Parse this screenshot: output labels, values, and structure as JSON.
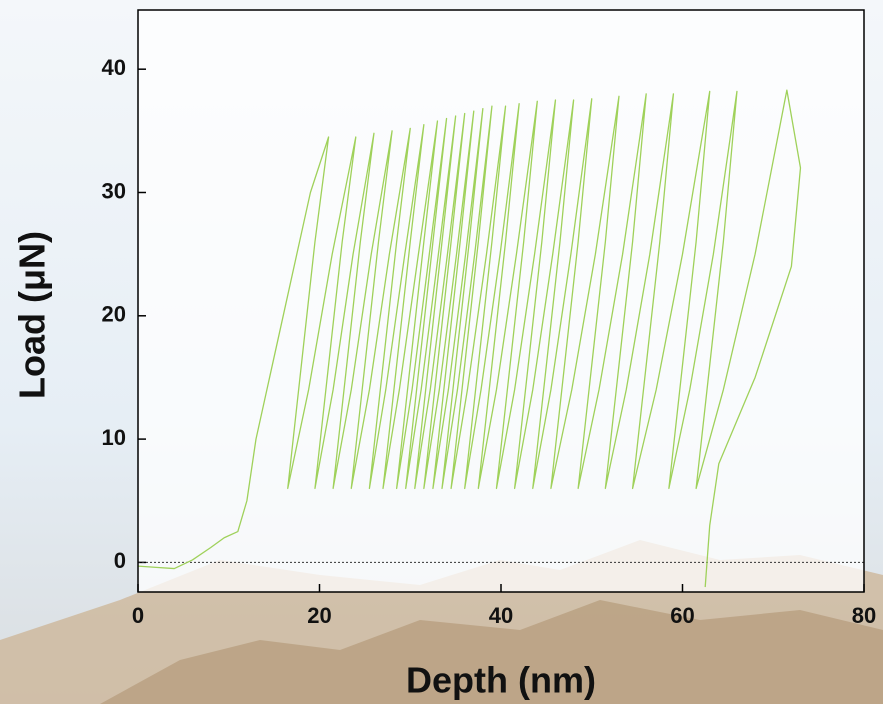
{
  "chart_data": {
    "type": "line",
    "xlabel": "Depth (nm)",
    "ylabel": "Load (μN)",
    "x": [
      0,
      2,
      4,
      6,
      8,
      9.5,
      11,
      12,
      13,
      14.5,
      16,
      17.5,
      19,
      21,
      19.5,
      18,
      16.5,
      18.8,
      21.4,
      24,
      22.5,
      21,
      19.5,
      21.5,
      23.7,
      26,
      24.5,
      23,
      21.5,
      23.5,
      25.7,
      28,
      26.5,
      25,
      23.5,
      25.5,
      27.7,
      30,
      28.5,
      27,
      25.5,
      27.3,
      29.4,
      31.5,
      30,
      28.5,
      27,
      28.8,
      30.9,
      33,
      31.5,
      30,
      28.5,
      30.2,
      32.1,
      34,
      32.5,
      31,
      29.5,
      31.2,
      33.1,
      35,
      33.5,
      32,
      30.5,
      32.2,
      34.1,
      36,
      34.5,
      33,
      31.5,
      33.2,
      35.1,
      37,
      35.5,
      34,
      32.5,
      34.2,
      36.1,
      38,
      36.5,
      35,
      33.5,
      35.2,
      37.1,
      39,
      37.5,
      36,
      34.5,
      36.3,
      38.4,
      40.5,
      39,
      37.5,
      36,
      37.8,
      39.9,
      42,
      40.5,
      39,
      37.5,
      39.5,
      41.7,
      44,
      42.5,
      41,
      39.5,
      41.5,
      43.7,
      46,
      44.5,
      43,
      41.5,
      43.5,
      45.7,
      48,
      46.5,
      45,
      43.5,
      45.5,
      47.7,
      50,
      48.5,
      47,
      45.5,
      47.8,
      50.4,
      53,
      51.5,
      50,
      48.5,
      50.8,
      53.4,
      56,
      54.5,
      53,
      51.5,
      53.8,
      56.4,
      59,
      57.5,
      56,
      54.5,
      57.1,
      60,
      63,
      61.5,
      60,
      58.5,
      60.8,
      63.4,
      66,
      64.5,
      63,
      61.5,
      64.5,
      68,
      71.5,
      73,
      72,
      68,
      64,
      63,
      62.5
    ],
    "values": [
      -0.3,
      -0.4,
      -0.5,
      0.2,
      1.2,
      2,
      2.5,
      5,
      10,
      15,
      20,
      25,
      30,
      34.5,
      26,
      16,
      6,
      14,
      25,
      34.5,
      26,
      16,
      6,
      14,
      25,
      34.8,
      26,
      16,
      6,
      14,
      25,
      35,
      26,
      16,
      6,
      14,
      25,
      35.2,
      26,
      16,
      6,
      14,
      25,
      35.5,
      26,
      16,
      6,
      14,
      25,
      35.8,
      26,
      16,
      6,
      14,
      25,
      36,
      26,
      16,
      6,
      14,
      25,
      36.2,
      26,
      16,
      6,
      14,
      25,
      36.4,
      26,
      16,
      6,
      14,
      25,
      36.6,
      26,
      16,
      6,
      14,
      25,
      36.8,
      26,
      16,
      6,
      14,
      25,
      37,
      26,
      16,
      6,
      14,
      25,
      37,
      26,
      16,
      6,
      14,
      25,
      37.2,
      26,
      16,
      6,
      14,
      25,
      37.4,
      26,
      16,
      6,
      14,
      25,
      37.5,
      26,
      16,
      6,
      14,
      25,
      37.5,
      26,
      16,
      6,
      14,
      25,
      37.6,
      26,
      16,
      6,
      14,
      25,
      37.8,
      26,
      16,
      6,
      14,
      25,
      38,
      26,
      16,
      6,
      14,
      25,
      38,
      26,
      16,
      6,
      14,
      25,
      38.2,
      26,
      16,
      6,
      14,
      25,
      38.2,
      26,
      16,
      6,
      14,
      25,
      38.3,
      32,
      24,
      15,
      8,
      3,
      -2
    ],
    "color": "#9fd15a",
    "xlim": [
      0,
      80
    ],
    "xticks": [
      0,
      20,
      40,
      60,
      80
    ],
    "ylim": [
      -2.4,
      44.8
    ],
    "yticks": [
      0,
      10,
      20,
      30,
      40
    ],
    "grid": false
  }
}
